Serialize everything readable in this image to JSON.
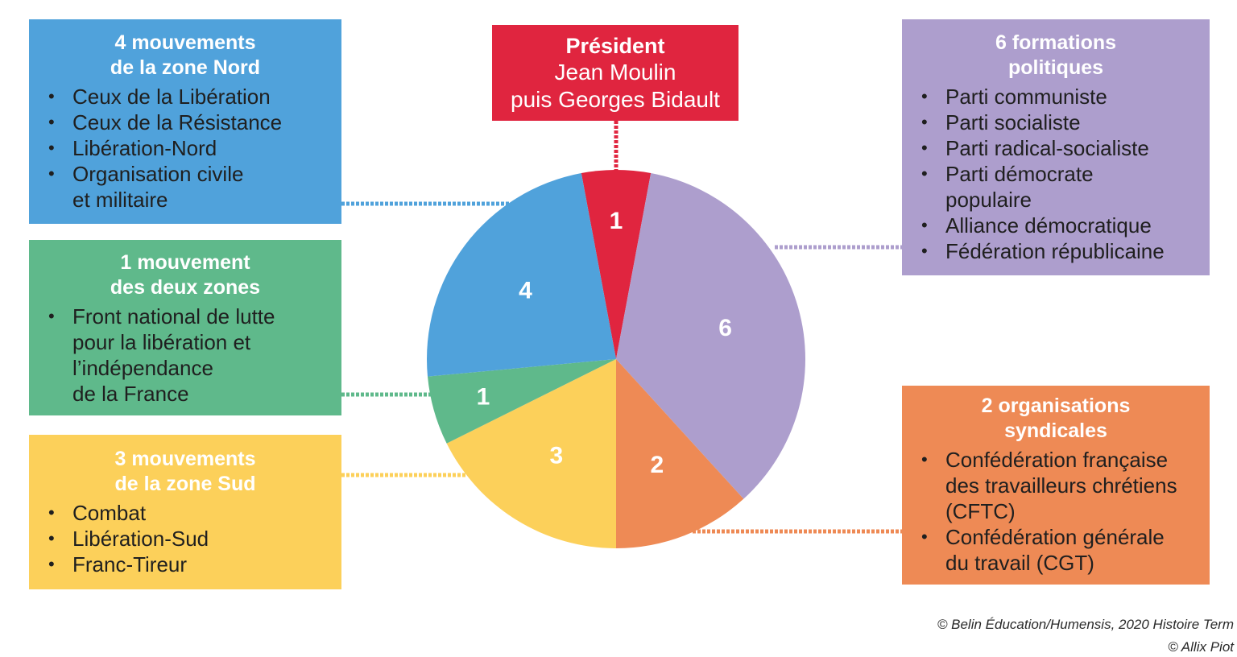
{
  "chart_data": {
    "type": "pie",
    "title": "",
    "slices": [
      {
        "label": "1",
        "value": 1,
        "color": "#e0253f",
        "group": "président"
      },
      {
        "label": "6",
        "value": 6,
        "color": "#ad9ecd",
        "group": "formations politiques"
      },
      {
        "label": "2",
        "value": 2,
        "color": "#ee8a55",
        "group": "organisations syndicales"
      },
      {
        "label": "3",
        "value": 3,
        "color": "#fcd05a",
        "group": "zone Sud"
      },
      {
        "label": "1",
        "value": 1,
        "color": "#5fb98b",
        "group": "deux zones"
      },
      {
        "label": "4",
        "value": 4,
        "color": "#50a2db",
        "group": "zone Nord"
      }
    ]
  },
  "groups": {
    "nord": {
      "title": "4 mouvements\nde la zone Nord",
      "color": "#50a2db",
      "items": [
        "Ceux de la Libération",
        "Ceux de la Résistance",
        "Libération-Nord",
        "Organisation civile\net militaire"
      ]
    },
    "deux_zones": {
      "title": "1 mouvement\ndes deux zones",
      "color": "#5fb98b",
      "items": [
        "Front national de lutte\npour la libération et\nl’indépendance\nde la France"
      ]
    },
    "sud": {
      "title": "3 mouvements\nde la zone Sud",
      "color": "#fcd05a",
      "items": [
        "Combat",
        "Libération-Sud",
        "Franc-Tireur"
      ]
    },
    "president": {
      "title": "Président",
      "name": "Jean Moulin\npuis Georges Bidault",
      "color": "#e0253f"
    },
    "partis": {
      "title": "6 formations\npolitiques",
      "color": "#ad9ecd",
      "items": [
        "Parti communiste",
        "Parti socialiste",
        "Parti radical-socialiste",
        "Parti démocrate\npopulaire",
        "Alliance démocratique",
        "Fédération républicaine"
      ]
    },
    "syndicats": {
      "title": "2 organisations\nsyndicales",
      "color": "#ee8a55",
      "items": [
        "Confédération française\ndes travailleurs chrétiens\n(CFTC)",
        "Confédération générale\ndu travail (CGT)"
      ]
    }
  },
  "credits": {
    "line1": "© Belin Éducation/Humensis, 2020 Histoire Term",
    "line2": "© Allix Piot"
  }
}
